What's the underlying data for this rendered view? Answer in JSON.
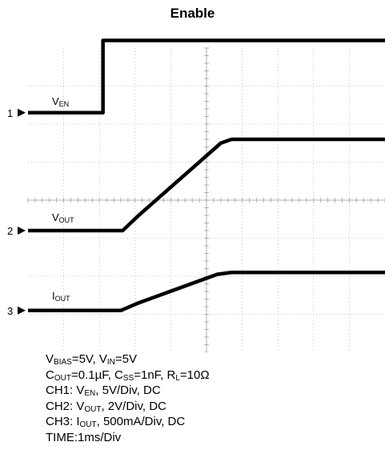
{
  "chart_data": {
    "type": "line",
    "title": "Enable",
    "xlim": [
      0,
      10
    ],
    "ylim": [
      -4,
      4
    ],
    "x_grid_divisions": 10,
    "y_grid_divisions": 8,
    "grid": true,
    "time_scale": "TIME:1ms/Div",
    "series": [
      {
        "name_main": "V",
        "name_sub": "EN",
        "channel": "1",
        "color": "#000000",
        "baseline": 2.3,
        "points": [
          [
            0,
            0
          ],
          [
            2.1,
            0
          ],
          [
            2.1,
            1.9
          ],
          [
            10,
            1.9
          ]
        ]
      },
      {
        "name_main": "V",
        "name_sub": "OUT",
        "channel": "2",
        "color": "#000000",
        "baseline": -0.8,
        "points": [
          [
            0,
            0
          ],
          [
            2.65,
            0
          ],
          [
            3.1,
            0.4
          ],
          [
            5.4,
            2.3
          ],
          [
            5.7,
            2.4
          ],
          [
            10,
            2.4
          ]
        ]
      },
      {
        "name_main": "I",
        "name_sub": "OUT",
        "channel": "3",
        "color": "#000000",
        "baseline": -2.9,
        "points": [
          [
            0,
            0
          ],
          [
            2.6,
            0
          ],
          [
            3.1,
            0.2
          ],
          [
            5.3,
            0.95
          ],
          [
            5.7,
            1.0
          ],
          [
            10,
            1.0
          ]
        ]
      }
    ]
  },
  "conditions": [
    [
      [
        "V",
        ""
      ],
      [
        "BIAS",
        "sub"
      ],
      [
        "=5V, V",
        ""
      ],
      [
        "IN",
        "sub"
      ],
      [
        "=5V",
        ""
      ]
    ],
    [
      [
        "C",
        ""
      ],
      [
        "OUT",
        "sub"
      ],
      [
        "=0.1µF, C",
        ""
      ],
      [
        "SS",
        "sub"
      ],
      [
        "=1nF, R",
        ""
      ],
      [
        "L",
        "sub"
      ],
      [
        "=10Ω",
        ""
      ]
    ],
    [
      [
        "CH1: V",
        ""
      ],
      [
        "EN",
        "sub"
      ],
      [
        ", 5V/Div, DC",
        ""
      ]
    ],
    [
      [
        "CH2: V",
        ""
      ],
      [
        "OUT",
        "sub"
      ],
      [
        ", 2V/Div, DC",
        ""
      ]
    ],
    [
      [
        "CH3: I",
        ""
      ],
      [
        "OUT",
        "sub"
      ],
      [
        ", 500mA/Div, DC",
        ""
      ]
    ]
  ]
}
